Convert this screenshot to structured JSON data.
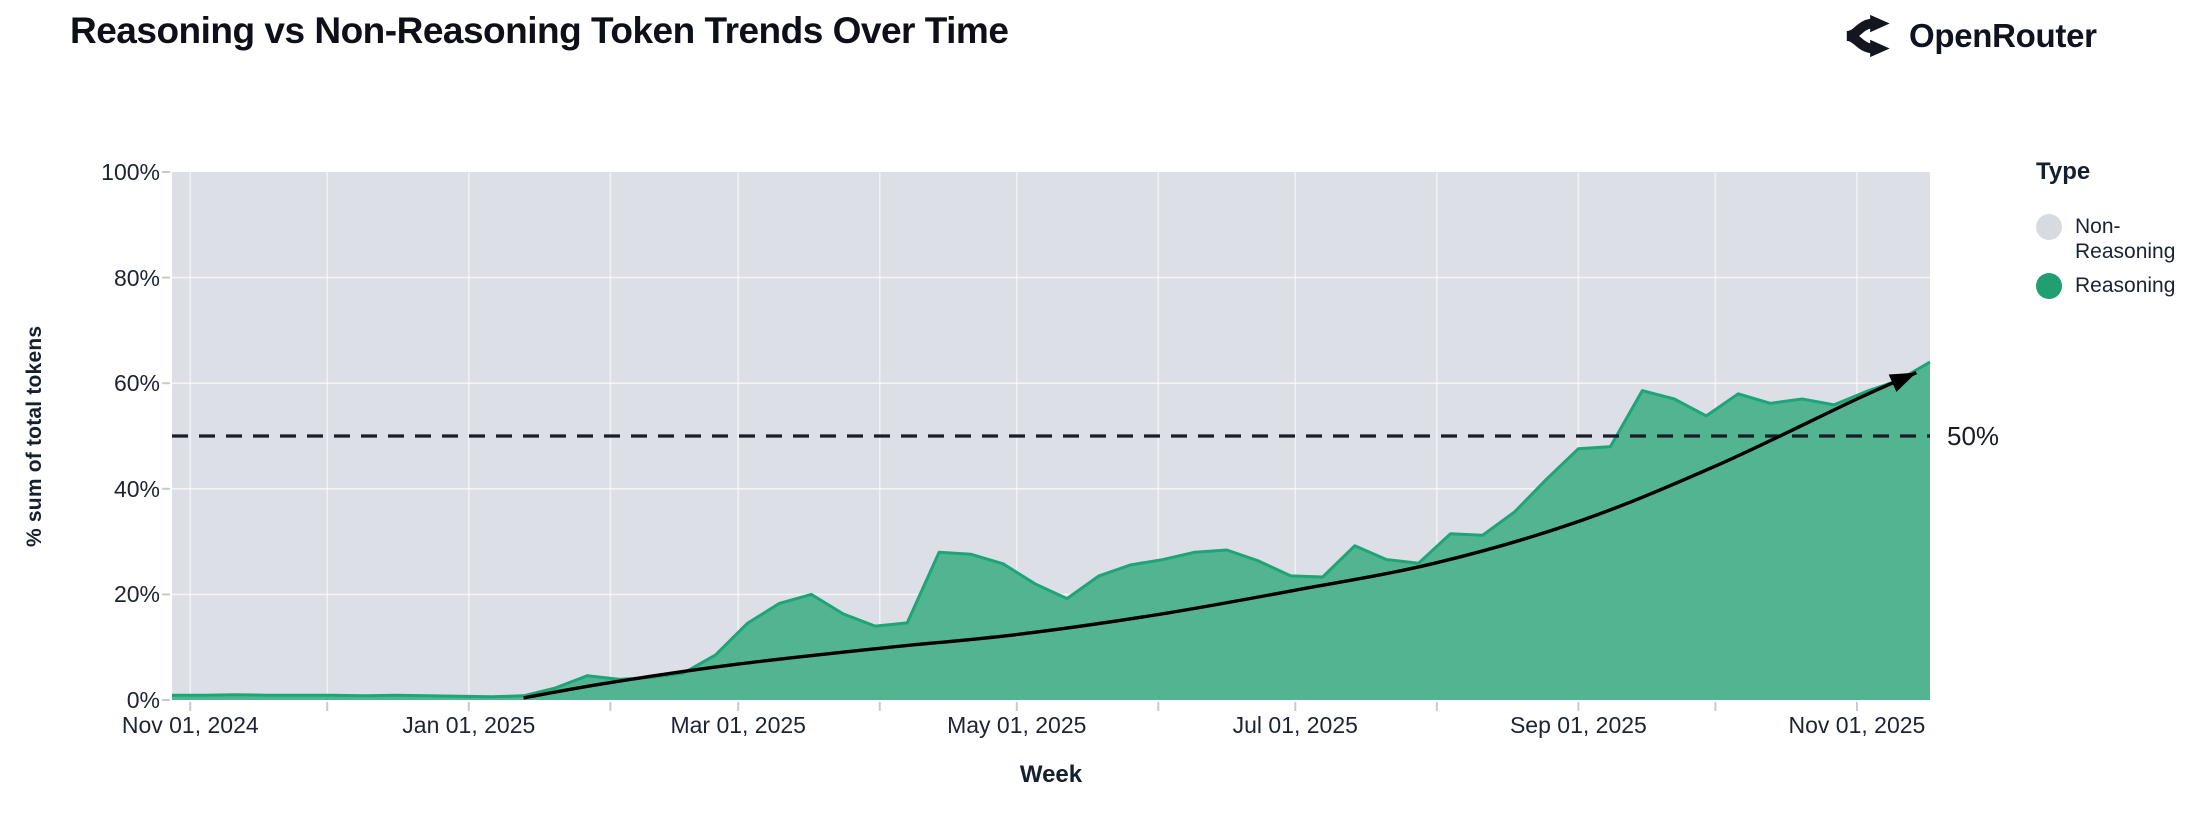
{
  "header": {
    "title": "Reasoning vs Non-Reasoning Token Trends Over Time",
    "brand": "OpenRouter"
  },
  "chart_data": {
    "type": "area",
    "title": "Reasoning vs Non-Reasoning Token Trends Over Time",
    "stacked_percent": true,
    "xlabel": "Week",
    "ylabel": "% sum of total tokens",
    "x_axis": {
      "label": "Week",
      "domain_days": [
        0,
        385
      ],
      "start_label": "Nov 01, 2024",
      "ticks": [
        {
          "label": "Nov 01, 2024",
          "day": 4
        },
        {
          "label": "Jan 01, 2025",
          "day": 65
        },
        {
          "label": "Mar 01, 2025",
          "day": 124
        },
        {
          "label": "May 01, 2025",
          "day": 185
        },
        {
          "label": "Jul 01, 2025",
          "day": 246
        },
        {
          "label": "Sep 01, 2025",
          "day": 308
        },
        {
          "label": "Nov 01, 2025",
          "day": 369
        }
      ],
      "month_grid_days": [
        4,
        34,
        65,
        96,
        124,
        155,
        185,
        216,
        246,
        277,
        308,
        338,
        369
      ]
    },
    "y_axis": {
      "label": "% sum of total tokens",
      "ylim": [
        0,
        100
      ],
      "ticks": [
        {
          "label": "0%",
          "value": 0
        },
        {
          "label": "20%",
          "value": 20
        },
        {
          "label": "40%",
          "value": 40
        },
        {
          "label": "60%",
          "value": 60
        },
        {
          "label": "80%",
          "value": 80
        },
        {
          "label": "100%",
          "value": 100
        }
      ],
      "grid_values": [
        20,
        40,
        60,
        80
      ]
    },
    "legend": {
      "title": "Type",
      "items": [
        {
          "label": "Non-Reasoning",
          "color": "#d7dadf"
        },
        {
          "label": "Reasoning",
          "color": "#219e72"
        }
      ]
    },
    "series": [
      {
        "name": "Non-Reasoning",
        "role": "background",
        "color": "#dcdfe6"
      },
      {
        "name": "Reasoning",
        "role": "area",
        "color_fill": "#53b492",
        "color_line": "#1da578",
        "week_interval_days": 7,
        "values_pct": [
          0.9,
          0.9,
          1.0,
          0.9,
          0.9,
          0.9,
          0.8,
          0.9,
          0.8,
          0.7,
          0.6,
          0.8,
          2.3,
          4.6,
          3.9,
          4.3,
          5.1,
          8.5,
          14.5,
          18.3,
          20.0,
          16.3,
          14.0,
          14.6,
          28.0,
          27.6,
          25.8,
          22.0,
          19.2,
          23.5,
          25.6,
          26.6,
          28.0,
          28.4,
          26.3,
          23.5,
          23.3,
          29.2,
          26.6,
          25.9,
          31.5,
          31.2,
          35.6,
          41.8,
          47.6,
          48.0,
          58.6,
          57.0,
          53.8,
          58.0,
          56.2,
          57.0,
          55.9,
          58.4,
          60.5,
          64.0
        ]
      }
    ],
    "annotations": {
      "ref_line": {
        "value_pct": 50,
        "label": "50%",
        "style": "dashed",
        "color": "#1b1c26"
      },
      "trend_arrow": {
        "color": "#000000",
        "points": [
          {
            "day": 77,
            "pct": 0.4
          },
          {
            "day": 96,
            "pct": 3.3
          },
          {
            "day": 124,
            "pct": 6.8
          },
          {
            "day": 155,
            "pct": 9.8
          },
          {
            "day": 185,
            "pct": 12.4
          },
          {
            "day": 216,
            "pct": 16.2
          },
          {
            "day": 246,
            "pct": 20.8
          },
          {
            "day": 277,
            "pct": 26.0
          },
          {
            "day": 308,
            "pct": 33.8
          },
          {
            "day": 338,
            "pct": 44.3
          },
          {
            "day": 369,
            "pct": 57.0
          },
          {
            "day": 382,
            "pct": 62.0
          }
        ]
      }
    }
  }
}
